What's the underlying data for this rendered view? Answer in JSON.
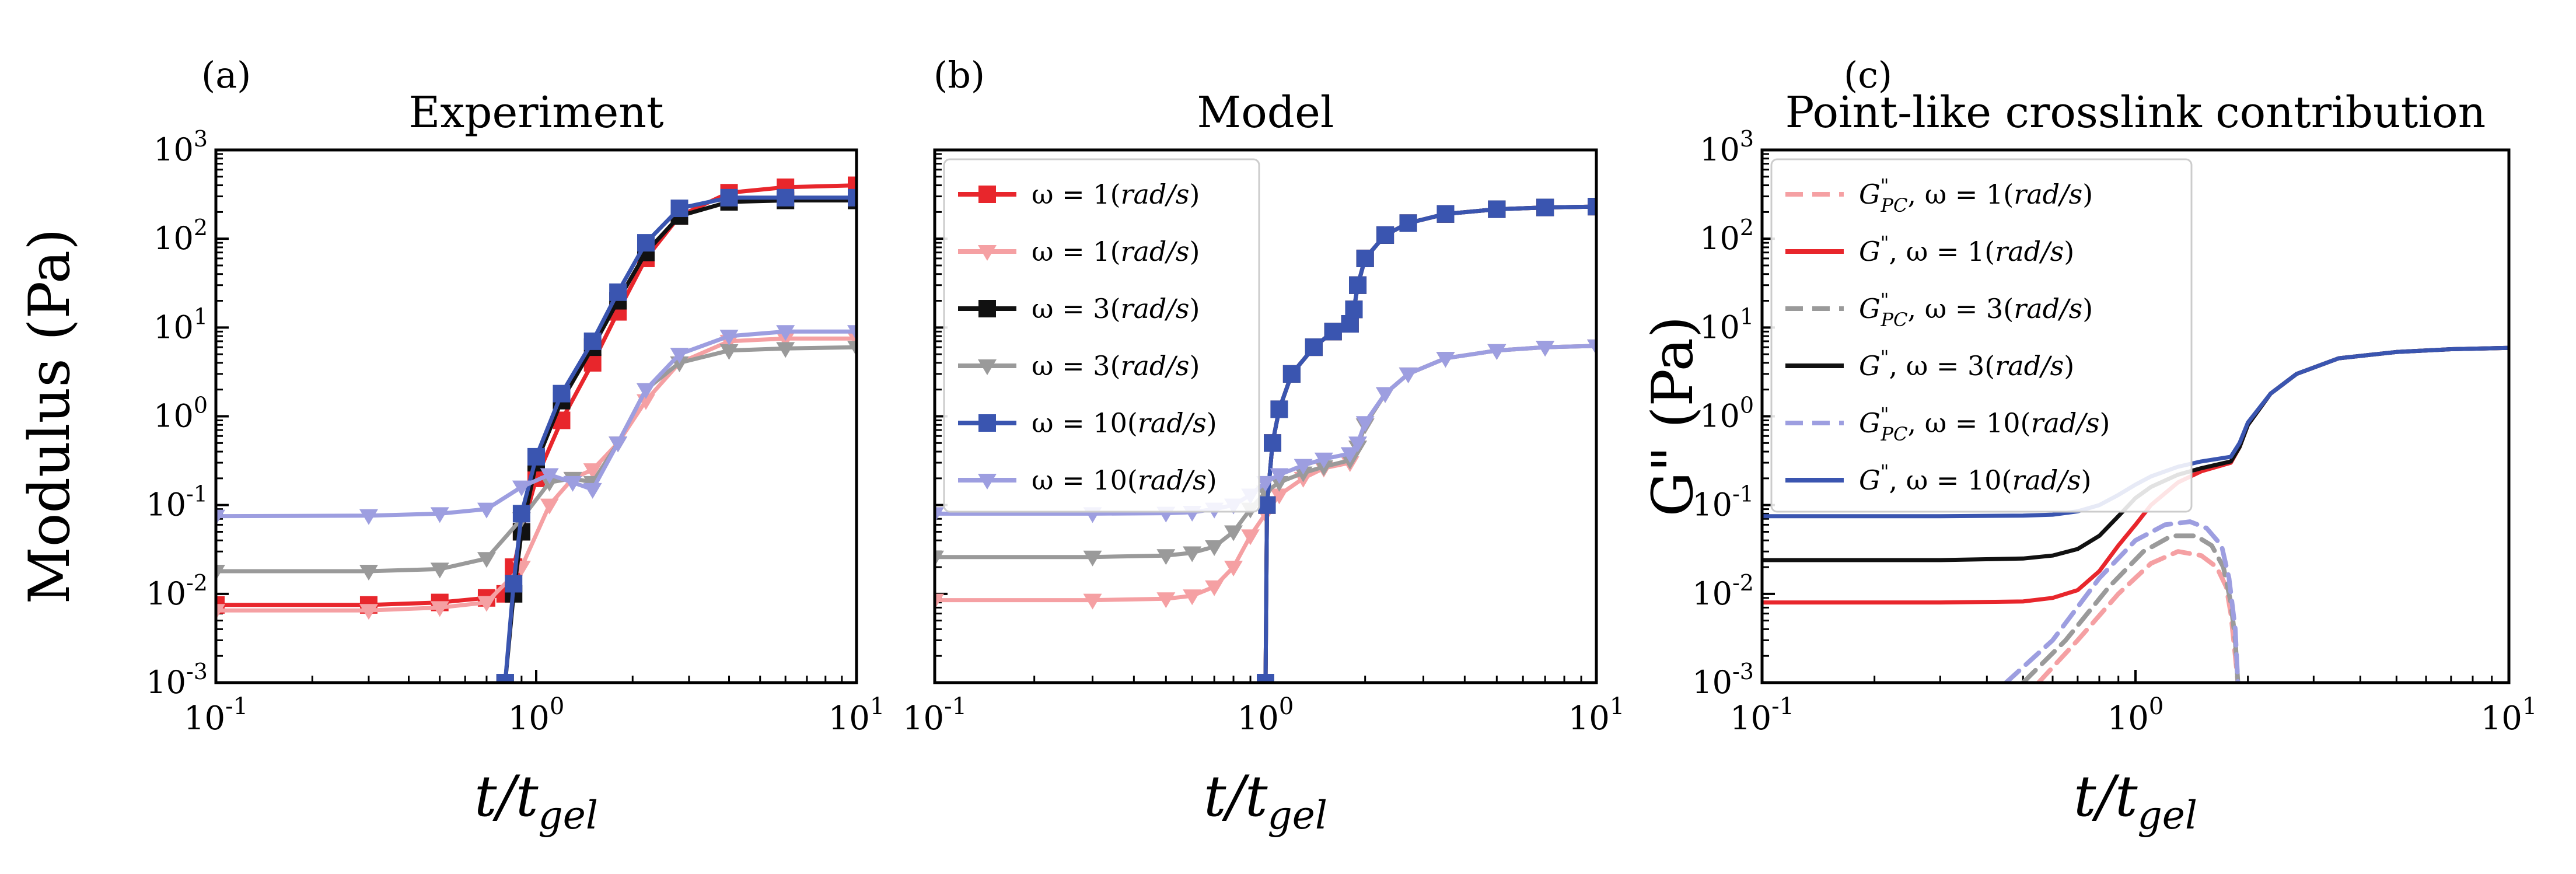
{
  "figure": {
    "x_label": "t/t",
    "x_label_sub": "gel",
    "x_ticks": [
      {
        "base": "10",
        "exp": "-1"
      },
      {
        "base": "10",
        "exp": "0"
      },
      {
        "base": "10",
        "exp": "1"
      }
    ],
    "y_ticks": [
      {
        "base": "10",
        "exp": "-3"
      },
      {
        "base": "10",
        "exp": "-2"
      },
      {
        "base": "10",
        "exp": "-1"
      },
      {
        "base": "10",
        "exp": "0"
      },
      {
        "base": "10",
        "exp": "1"
      },
      {
        "base": "10",
        "exp": "2"
      },
      {
        "base": "10",
        "exp": "3"
      }
    ]
  },
  "colors": {
    "red": "#e8262c",
    "pink": "#f5a0a3",
    "black": "#111111",
    "gray": "#9a9a9a",
    "blue": "#3a55b0",
    "lavender": "#9d9ee0"
  },
  "chart_data": [
    {
      "type": "line",
      "panel_label": "(a)",
      "title": "Experiment",
      "xlabel": "t/t_gel",
      "ylabel": "Modulus (Pa)",
      "xscale": "log",
      "yscale": "log",
      "xlim": [
        0.1,
        10
      ],
      "ylim": [
        0.001,
        1000
      ],
      "legend": null,
      "series": [
        {
          "name": "red",
          "color": "red",
          "marker": "square",
          "style": "solid",
          "x": [
            0.1,
            0.3,
            0.5,
            0.7,
            0.8,
            0.85,
            0.9,
            1.0,
            1.2,
            1.5,
            1.8,
            2.2,
            2.8,
            4,
            6,
            10
          ],
          "y": [
            0.0075,
            0.0075,
            0.008,
            0.009,
            0.01,
            0.02,
            0.05,
            0.2,
            0.9,
            4,
            15,
            60,
            180,
            330,
            380,
            400
          ]
        },
        {
          "name": "pink",
          "color": "pink",
          "marker": "triangle",
          "style": "solid",
          "x": [
            0.1,
            0.3,
            0.5,
            0.7,
            0.9,
            1.1,
            1.3,
            1.5,
            1.8,
            2.2,
            2.8,
            4,
            6,
            10
          ],
          "y": [
            0.0065,
            0.0065,
            0.007,
            0.008,
            0.02,
            0.1,
            0.2,
            0.25,
            0.5,
            1.5,
            4,
            7,
            7.5,
            7.5
          ]
        },
        {
          "name": "black",
          "color": "black",
          "marker": "square",
          "style": "solid",
          "x": [
            0.8,
            0.85,
            0.9,
            1.0,
            1.2,
            1.5,
            1.8,
            2.2,
            2.8,
            4,
            6,
            10
          ],
          "y": [
            0.001,
            0.01,
            0.05,
            0.3,
            1.5,
            6,
            20,
            70,
            180,
            260,
            270,
            270
          ]
        },
        {
          "name": "gray",
          "color": "gray",
          "marker": "triangle",
          "style": "solid",
          "x": [
            0.1,
            0.3,
            0.5,
            0.7,
            0.9,
            1.1,
            1.3,
            1.5,
            1.8,
            2.2,
            2.8,
            4,
            6,
            10
          ],
          "y": [
            0.018,
            0.018,
            0.019,
            0.025,
            0.07,
            0.18,
            0.2,
            0.18,
            0.5,
            2,
            4,
            5.5,
            5.8,
            6
          ]
        },
        {
          "name": "blue",
          "color": "blue",
          "marker": "square",
          "style": "solid",
          "x": [
            0.8,
            0.85,
            0.9,
            1.0,
            1.2,
            1.5,
            1.8,
            2.2,
            2.8,
            4,
            6,
            10
          ],
          "y": [
            0.001,
            0.013,
            0.08,
            0.35,
            1.8,
            7,
            25,
            90,
            220,
            290,
            290,
            290
          ]
        },
        {
          "name": "lavender",
          "color": "lavender",
          "marker": "triangle",
          "style": "solid",
          "x": [
            0.1,
            0.3,
            0.5,
            0.7,
            0.9,
            1.1,
            1.3,
            1.5,
            1.8,
            2.2,
            2.8,
            4,
            6,
            10
          ],
          "y": [
            0.075,
            0.076,
            0.08,
            0.09,
            0.16,
            0.22,
            0.18,
            0.15,
            0.5,
            2,
            5,
            8,
            9,
            9
          ]
        }
      ]
    },
    {
      "type": "line",
      "panel_label": "(b)",
      "title": "Model",
      "xlabel": "t/t_gel",
      "ylabel": "",
      "xscale": "log",
      "yscale": "log",
      "xlim": [
        0.1,
        10
      ],
      "ylim": [
        0.001,
        1000
      ],
      "legend": "top-left",
      "legend_entries": [
        {
          "prefix": "ω = 1(",
          "unit": "rad/s",
          "suffix": ")",
          "color": "red",
          "marker": "square",
          "style": "solid"
        },
        {
          "prefix": "ω = 1(",
          "unit": "rad/s",
          "suffix": ")",
          "color": "pink",
          "marker": "triangle",
          "style": "solid"
        },
        {
          "prefix": "ω = 3(",
          "unit": "rad/s",
          "suffix": ")",
          "color": "black",
          "marker": "square",
          "style": "solid"
        },
        {
          "prefix": "ω = 3(",
          "unit": "rad/s",
          "suffix": ")",
          "color": "gray",
          "marker": "triangle",
          "style": "solid"
        },
        {
          "prefix": "ω = 10(",
          "unit": "rad/s",
          "suffix": ")",
          "color": "blue",
          "marker": "square",
          "style": "solid"
        },
        {
          "prefix": "ω = 10(",
          "unit": "rad/s",
          "suffix": ")",
          "color": "lavender",
          "marker": "triangle",
          "style": "solid"
        }
      ],
      "series": [
        {
          "name": "ω=1 (rad/s) G'",
          "color": "red",
          "marker": "square",
          "style": "solid",
          "x": [
            1.0,
            1.01,
            1.05,
            1.1,
            1.2,
            1.4,
            1.6,
            1.8,
            1.85,
            1.9,
            2.0,
            2.3,
            2.7,
            3.5,
            5,
            7,
            10
          ],
          "y": [
            0.001,
            0.1,
            0.5,
            1.2,
            3,
            6,
            9,
            11,
            16,
            30,
            60,
            110,
            150,
            190,
            215,
            225,
            230
          ]
        },
        {
          "name": "ω=1 (rad/s) G''",
          "color": "pink",
          "marker": "triangle",
          "style": "solid",
          "x": [
            0.1,
            0.3,
            0.5,
            0.6,
            0.7,
            0.8,
            0.9,
            1.0,
            1.1,
            1.3,
            1.5,
            1.8,
            1.9,
            2.0,
            2.3,
            2.7,
            3.5,
            5,
            7,
            10
          ],
          "y": [
            0.0085,
            0.0085,
            0.0088,
            0.0095,
            0.012,
            0.02,
            0.045,
            0.08,
            0.13,
            0.2,
            0.26,
            0.3,
            0.45,
            0.8,
            1.8,
            3,
            4.5,
            5.5,
            6,
            6.2
          ]
        },
        {
          "name": "ω=3 (rad/s) G'",
          "color": "black",
          "marker": "square",
          "style": "solid",
          "x": [
            1.0,
            1.01,
            1.05,
            1.1,
            1.2,
            1.4,
            1.6,
            1.8,
            1.85,
            1.9,
            2.0,
            2.3,
            2.7,
            3.5,
            5,
            7,
            10
          ],
          "y": [
            0.001,
            0.1,
            0.5,
            1.2,
            3,
            6,
            9,
            11,
            16,
            30,
            60,
            110,
            150,
            190,
            215,
            225,
            230
          ]
        },
        {
          "name": "ω=3 (rad/s) G''",
          "color": "gray",
          "marker": "triangle",
          "style": "solid",
          "x": [
            0.1,
            0.3,
            0.5,
            0.6,
            0.7,
            0.8,
            0.9,
            1.0,
            1.1,
            1.3,
            1.5,
            1.8,
            1.9,
            2.0,
            2.3,
            2.7,
            3.5,
            5,
            7,
            10
          ],
          "y": [
            0.026,
            0.026,
            0.027,
            0.029,
            0.034,
            0.05,
            0.09,
            0.14,
            0.18,
            0.23,
            0.27,
            0.32,
            0.45,
            0.8,
            1.8,
            3,
            4.5,
            5.5,
            6,
            6.2
          ]
        },
        {
          "name": "ω=10 (rad/s) G'",
          "color": "blue",
          "marker": "square",
          "style": "solid",
          "x": [
            1.0,
            1.01,
            1.05,
            1.1,
            1.2,
            1.4,
            1.6,
            1.8,
            1.85,
            1.9,
            2.0,
            2.3,
            2.7,
            3.5,
            5,
            7,
            10
          ],
          "y": [
            0.001,
            0.1,
            0.5,
            1.2,
            3,
            6,
            9,
            11,
            16,
            30,
            60,
            110,
            150,
            190,
            215,
            225,
            230
          ]
        },
        {
          "name": "ω=10 (rad/s) G''",
          "color": "lavender",
          "marker": "triangle",
          "style": "solid",
          "x": [
            0.1,
            0.3,
            0.5,
            0.6,
            0.7,
            0.8,
            0.9,
            1.0,
            1.1,
            1.3,
            1.5,
            1.8,
            1.9,
            2.0,
            2.3,
            2.7,
            3.5,
            5,
            7,
            10
          ],
          "y": [
            0.08,
            0.08,
            0.081,
            0.083,
            0.09,
            0.1,
            0.13,
            0.18,
            0.22,
            0.28,
            0.33,
            0.38,
            0.5,
            0.85,
            1.8,
            3,
            4.5,
            5.5,
            6,
            6.2
          ]
        }
      ]
    },
    {
      "type": "line",
      "panel_label": "(c)",
      "title": "Point-like crosslink contribution",
      "xlabel": "t/t_gel",
      "ylabel": "G\" (Pa)",
      "xscale": "log",
      "yscale": "log",
      "xlim": [
        0.1,
        10
      ],
      "ylim": [
        0.001,
        1000
      ],
      "legend": "top-left",
      "legend_entries": [
        {
          "symbol": "G",
          "sup": "\"",
          "sub": "PC",
          "prefix": ",  ω = 1(",
          "unit": "rad/s",
          "suffix": ")",
          "color": "pink",
          "style": "dashed"
        },
        {
          "symbol": "G",
          "sup": "\"",
          "sub": "",
          "prefix": ",  ω = 1(",
          "unit": "rad/s",
          "suffix": ")",
          "color": "red",
          "style": "solid"
        },
        {
          "symbol": "G",
          "sup": "\"",
          "sub": "PC",
          "prefix": ",  ω = 3(",
          "unit": "rad/s",
          "suffix": ")",
          "color": "gray",
          "style": "dashed"
        },
        {
          "symbol": "G",
          "sup": "\"",
          "sub": "",
          "prefix": ",  ω = 3(",
          "unit": "rad/s",
          "suffix": ")",
          "color": "black",
          "style": "solid"
        },
        {
          "symbol": "G",
          "sup": "\"",
          "sub": "PC",
          "prefix": ",  ω = 10(",
          "unit": "rad/s",
          "suffix": ")",
          "color": "lavender",
          "style": "dashed"
        },
        {
          "symbol": "G",
          "sup": "\"",
          "sub": "",
          "prefix": ",  ω = 10(",
          "unit": "rad/s",
          "suffix": ")",
          "color": "blue",
          "style": "solid"
        }
      ],
      "series": [
        {
          "name": "G\"_PC ω=1",
          "color": "pink",
          "style": "dashed",
          "x": [
            0.55,
            0.7,
            0.9,
            1.1,
            1.3,
            1.5,
            1.65,
            1.75,
            1.8,
            1.85,
            1.88
          ],
          "y": [
            0.001,
            0.003,
            0.01,
            0.022,
            0.03,
            0.027,
            0.02,
            0.012,
            0.006,
            0.002,
            0.001
          ]
        },
        {
          "name": "G\"_PC ω=3",
          "color": "gray",
          "style": "dashed",
          "x": [
            0.5,
            0.65,
            0.85,
            1.05,
            1.25,
            1.45,
            1.6,
            1.72,
            1.8,
            1.85,
            1.88
          ],
          "y": [
            0.001,
            0.003,
            0.012,
            0.03,
            0.045,
            0.045,
            0.035,
            0.02,
            0.008,
            0.003,
            0.001
          ]
        },
        {
          "name": "G\"_PC ω=10",
          "color": "lavender",
          "style": "dashed",
          "x": [
            0.45,
            0.6,
            0.8,
            1.0,
            1.2,
            1.4,
            1.55,
            1.7,
            1.78,
            1.85,
            1.88
          ],
          "y": [
            0.001,
            0.003,
            0.015,
            0.04,
            0.06,
            0.065,
            0.055,
            0.035,
            0.015,
            0.004,
            0.001
          ]
        },
        {
          "name": "G\" ω=1",
          "color": "red",
          "style": "solid",
          "x": [
            0.1,
            0.3,
            0.5,
            0.6,
            0.7,
            0.8,
            0.9,
            1.0,
            1.1,
            1.3,
            1.5,
            1.8,
            1.9,
            2.0,
            2.3,
            2.7,
            3.5,
            5,
            7,
            10
          ],
          "y": [
            0.008,
            0.008,
            0.0082,
            0.009,
            0.011,
            0.018,
            0.035,
            0.06,
            0.1,
            0.18,
            0.24,
            0.3,
            0.45,
            0.8,
            1.8,
            3,
            4.5,
            5.3,
            5.7,
            5.9
          ]
        },
        {
          "name": "G\" ω=3",
          "color": "black",
          "style": "solid",
          "x": [
            0.1,
            0.3,
            0.5,
            0.6,
            0.7,
            0.8,
            0.9,
            1.0,
            1.1,
            1.3,
            1.5,
            1.8,
            1.9,
            2.0,
            2.3,
            2.7,
            3.5,
            5,
            7,
            10
          ],
          "y": [
            0.024,
            0.024,
            0.025,
            0.027,
            0.032,
            0.045,
            0.075,
            0.12,
            0.16,
            0.22,
            0.26,
            0.31,
            0.45,
            0.8,
            1.8,
            3,
            4.5,
            5.3,
            5.7,
            5.9
          ]
        },
        {
          "name": "G\" ω=10",
          "color": "blue",
          "style": "solid",
          "x": [
            0.1,
            0.3,
            0.5,
            0.6,
            0.7,
            0.8,
            0.9,
            1.0,
            1.1,
            1.3,
            1.5,
            1.8,
            1.9,
            2.0,
            2.3,
            2.7,
            3.5,
            5,
            7,
            10
          ],
          "y": [
            0.075,
            0.075,
            0.076,
            0.078,
            0.085,
            0.1,
            0.13,
            0.17,
            0.21,
            0.27,
            0.31,
            0.35,
            0.5,
            0.85,
            1.8,
            3,
            4.5,
            5.3,
            5.7,
            5.9
          ]
        }
      ]
    }
  ]
}
